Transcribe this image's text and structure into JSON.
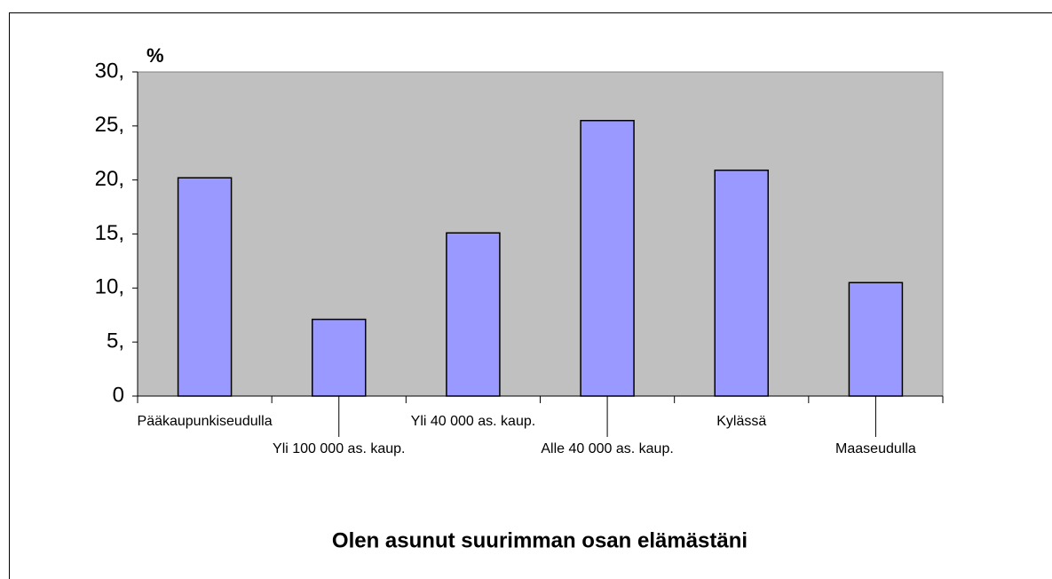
{
  "chart_data": {
    "type": "bar",
    "title": "Olen asunut suurimman osan elämästäni",
    "y_label": "%",
    "categories": [
      "Pääkaupunkiseudulla",
      "Yli 100 000 as. kaup.",
      "Yli 40 000 as. kaup.",
      "Alle 40 000 as. kaup.",
      "Kylässä",
      "Maaseudulla"
    ],
    "values": [
      20.2,
      7.1,
      15.1,
      25.5,
      20.9,
      10.5
    ],
    "color": "#9999ff",
    "ylim": [
      0,
      30
    ],
    "yticks": [
      0,
      {
        "value": 5,
        "label": "5,"
      },
      {
        "value": 10,
        "label": "10,"
      },
      {
        "value": 15,
        "label": "15,"
      },
      {
        "value": 20,
        "label": "20,"
      },
      {
        "value": 25,
        "label": "25,"
      },
      {
        "value": 30,
        "label": "30,"
      }
    ],
    "grid": false
  }
}
